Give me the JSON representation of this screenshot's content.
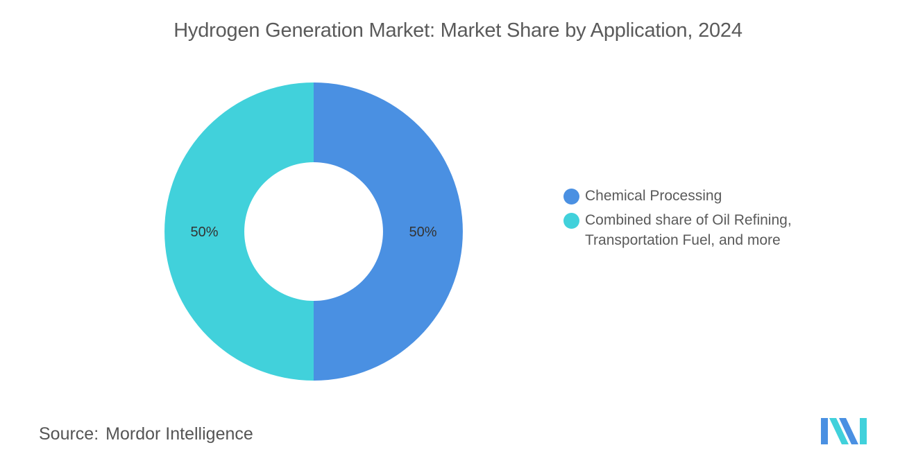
{
  "chart_data": {
    "type": "pie",
    "donut": true,
    "title": "Hydrogen Generation Market: Market Share by Application, 2024",
    "categories": [
      "Chemical Processing",
      "Combined share of Oil Refining, Transportation Fuel, and more"
    ],
    "values": [
      50,
      50
    ],
    "data_labels": [
      "50%",
      "50%"
    ],
    "colors": [
      "#4a90e2",
      "#41d1db"
    ],
    "legend_placement": "right"
  },
  "source": {
    "label": "Source:",
    "value": "Mordor Intelligence"
  },
  "logo": {
    "icon": "mordor-intelligence-logo",
    "colors": [
      "#4a90e2",
      "#41d1db"
    ]
  }
}
